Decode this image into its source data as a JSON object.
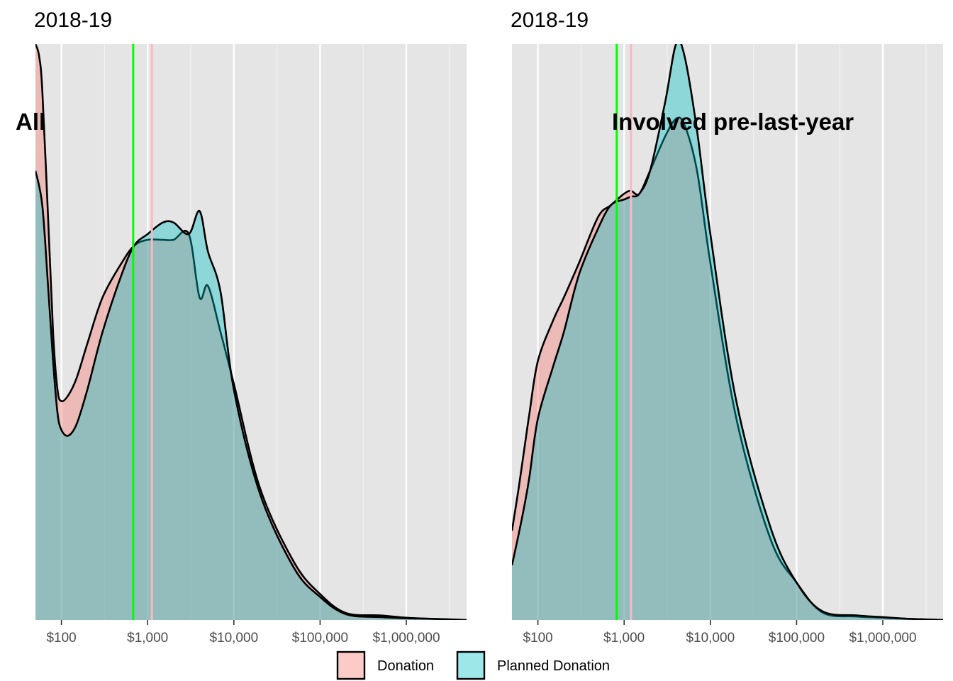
{
  "chart_data": [
    {
      "type": "area",
      "title": "2018-19",
      "annotation": "All",
      "x_scale": "log10",
      "xlim": [
        50,
        5000000
      ],
      "ylim": [
        0,
        1
      ],
      "grid": true,
      "x_major_ticks": [
        100,
        1000,
        10000,
        100000,
        1000000
      ],
      "x_tick_labels": [
        "$100",
        "$1,000",
        "$10,000",
        "$100,000",
        "$1,000,000"
      ],
      "y_tick_labels": [],
      "vlines": [
        {
          "x": 680,
          "color": "#00ff00"
        },
        {
          "x": 1120,
          "color": "#ffb6c1"
        }
      ],
      "series": [
        {
          "name": "Donation",
          "color": "#f8766d",
          "x": [
            50,
            55,
            60,
            70,
            80,
            90,
            100,
            120,
            150,
            200,
            300,
            500,
            700,
            1000,
            1500,
            2000,
            3000,
            4000,
            5000,
            7000,
            10000,
            20000,
            50000,
            100000,
            200000,
            500000,
            1000000,
            2000000,
            5000000
          ],
          "y": [
            1.0,
            0.98,
            0.92,
            0.7,
            0.5,
            0.4,
            0.38,
            0.39,
            0.42,
            0.48,
            0.56,
            0.62,
            0.65,
            0.66,
            0.66,
            0.66,
            0.67,
            0.56,
            0.58,
            0.5,
            0.41,
            0.23,
            0.1,
            0.045,
            0.012,
            0.008,
            0.004,
            0.002,
            0.0
          ]
        },
        {
          "name": "Planned Donation",
          "color": "#00bfc4",
          "x": [
            50,
            60,
            70,
            80,
            90,
            100,
            120,
            150,
            200,
            300,
            500,
            700,
            1000,
            1500,
            2000,
            3000,
            4000,
            5000,
            7000,
            10000,
            20000,
            50000,
            100000,
            200000,
            500000,
            1000000,
            2000000,
            5000000
          ],
          "y": [
            0.78,
            0.72,
            0.58,
            0.45,
            0.36,
            0.33,
            0.32,
            0.34,
            0.4,
            0.5,
            0.6,
            0.65,
            0.67,
            0.69,
            0.69,
            0.67,
            0.71,
            0.64,
            0.57,
            0.4,
            0.22,
            0.09,
            0.04,
            0.01,
            0.005,
            0.003,
            0.002,
            0.0
          ]
        }
      ]
    },
    {
      "type": "area",
      "title": "2018-19",
      "annotation": "Involved pre-last-year",
      "x_scale": "log10",
      "xlim": [
        50,
        5000000
      ],
      "ylim": [
        0,
        1
      ],
      "grid": true,
      "x_major_ticks": [
        100,
        1000,
        10000,
        100000,
        1000000
      ],
      "x_tick_labels": [
        "$100",
        "$1,000",
        "$10,000",
        "$100,000",
        "$1,000,000"
      ],
      "y_tick_labels": [],
      "vlines": [
        {
          "x": 820,
          "color": "#00ff00"
        },
        {
          "x": 1200,
          "color": "#ffb6c1"
        }
      ],
      "series": [
        {
          "name": "Donation",
          "color": "#f8766d",
          "x": [
            50,
            60,
            70,
            80,
            100,
            150,
            200,
            300,
            500,
            700,
            1000,
            1200,
            1500,
            2000,
            3000,
            4000,
            5000,
            7000,
            10000,
            20000,
            50000,
            100000,
            200000,
            500000,
            1000000,
            2000000,
            5000000
          ],
          "y": [
            0.155,
            0.23,
            0.3,
            0.36,
            0.45,
            0.52,
            0.56,
            0.62,
            0.7,
            0.72,
            0.74,
            0.745,
            0.74,
            0.78,
            0.84,
            0.87,
            0.86,
            0.78,
            0.62,
            0.35,
            0.14,
            0.065,
            0.013,
            0.006,
            0.004,
            0.002,
            0.0
          ]
        },
        {
          "name": "Planned Donation",
          "color": "#00bfc4",
          "x": [
            50,
            60,
            70,
            80,
            100,
            150,
            200,
            300,
            500,
            700,
            1000,
            1200,
            1500,
            2000,
            3000,
            4000,
            5000,
            7000,
            10000,
            20000,
            50000,
            100000,
            200000,
            500000,
            1000000,
            2000000,
            5000000
          ],
          "y": [
            0.095,
            0.15,
            0.2,
            0.25,
            0.35,
            0.44,
            0.5,
            0.6,
            0.68,
            0.72,
            0.73,
            0.735,
            0.74,
            0.78,
            0.9,
            1.0,
            0.98,
            0.85,
            0.67,
            0.38,
            0.16,
            0.065,
            0.015,
            0.008,
            0.005,
            0.002,
            0.0
          ]
        }
      ]
    }
  ],
  "legend": {
    "items": [
      {
        "label": "Donation",
        "color": "#f8766d"
      },
      {
        "label": "Planned Donation",
        "color": "#00bfc4"
      }
    ],
    "placement": "bottom"
  }
}
